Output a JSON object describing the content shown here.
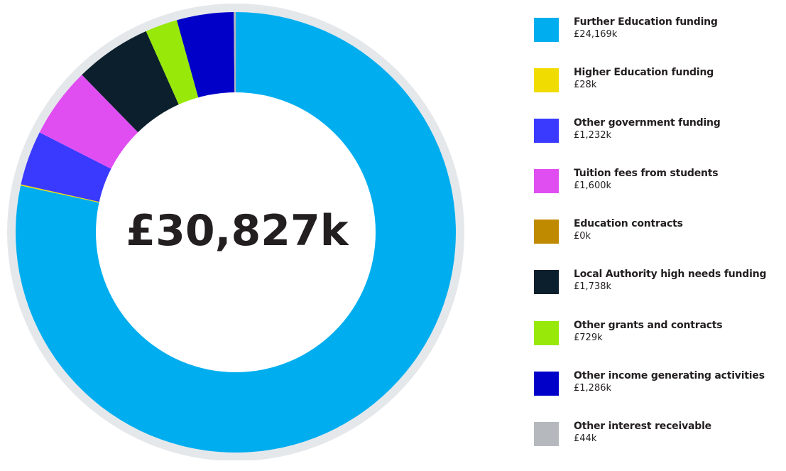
{
  "chart_data": {
    "type": "pie",
    "variant": "donut",
    "center_label": "£30,827k",
    "categories": [
      "Further  Education funding",
      "Higher Education funding",
      "Other government funding",
      "Tuition fees from students",
      "Education contracts",
      "Local Authority high needs funding",
      "Other grants and contracts",
      "Other income generating activities",
      "Other interest receivable"
    ],
    "value_labels": [
      "£24,169k",
      "£28k",
      "£1,232k",
      "£1,600k",
      "£0k",
      "£1,738k",
      "£729k",
      "£1,286k",
      "£44k"
    ],
    "values": [
      24169,
      28,
      1232,
      1600,
      0,
      1738,
      729,
      1286,
      44
    ],
    "colors": [
      "#00aeef",
      "#f0dc00",
      "#3a3aff",
      "#e04ef2",
      "#c08a00",
      "#0b202c",
      "#98e80a",
      "#0000c8",
      "#b5b9bd"
    ],
    "ring_color": "#e5e8eb",
    "legend_position": "right"
  }
}
